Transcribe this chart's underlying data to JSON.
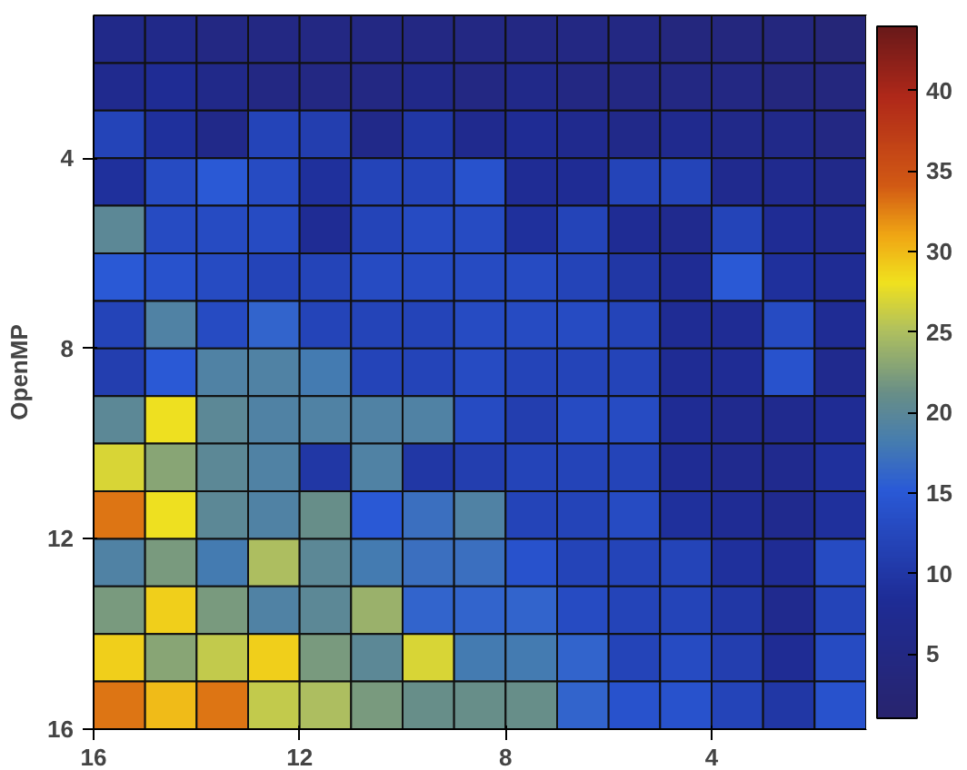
{
  "chart_data": {
    "type": "heatmap",
    "ylabel": "OpenMP",
    "x": [
      15.5,
      14.5,
      13.5,
      12.5,
      11.5,
      10.5,
      9.5,
      8.5,
      7.5,
      6.5,
      5.5,
      4.5,
      3.5,
      2.5,
      1.5
    ],
    "y": [
      1.5,
      2.5,
      3.5,
      4.5,
      5.5,
      6.5,
      7.5,
      8.5,
      9.5,
      10.5,
      11.5,
      12.5,
      13.5,
      14.5,
      15.5
    ],
    "xlim": [
      16,
      1
    ],
    "xticks": [
      16,
      12,
      8,
      4
    ],
    "ylim": [
      16,
      1
    ],
    "yticks": [
      4,
      8,
      12,
      16
    ],
    "clim": [
      1,
      44
    ],
    "cticks": [
      5,
      10,
      15,
      20,
      25,
      30,
      35,
      40
    ],
    "cells": [
      [
        6,
        6,
        5,
        5,
        5,
        5,
        5,
        5,
        5,
        5,
        5,
        4,
        4,
        4,
        3
      ],
      [
        7,
        8,
        6,
        5,
        5,
        5,
        6,
        5,
        6,
        5,
        5,
        5,
        5,
        4,
        4
      ],
      [
        12,
        9,
        6,
        12,
        11,
        6,
        10,
        7,
        8,
        7,
        6,
        7,
        6,
        6,
        5
      ],
      [
        9,
        13,
        15,
        13,
        9,
        12,
        12,
        14,
        8,
        8,
        12,
        12,
        7,
        7,
        6
      ],
      [
        20,
        13,
        13,
        13,
        8,
        12,
        13,
        13,
        9,
        12,
        8,
        7,
        12,
        8,
        7
      ],
      [
        15,
        14,
        13,
        12,
        12,
        13,
        13,
        13,
        13,
        12,
        10,
        8,
        15,
        9,
        8
      ],
      [
        12,
        19,
        13,
        16,
        12,
        12,
        12,
        13,
        13,
        13,
        12,
        8,
        8,
        13,
        8
      ],
      [
        11,
        15,
        19,
        19,
        18,
        12,
        12,
        13,
        12,
        12,
        12,
        8,
        8,
        14,
        7
      ],
      [
        20,
        28,
        20,
        19,
        19,
        19,
        19,
        13,
        11,
        13,
        13,
        8,
        7,
        7,
        8
      ],
      [
        27,
        23,
        20,
        19,
        10,
        19,
        10,
        11,
        12,
        12,
        12,
        8,
        7,
        7,
        9
      ],
      [
        33,
        28,
        20,
        19,
        21,
        15,
        17,
        19,
        12,
        12,
        13,
        9,
        8,
        7,
        9
      ],
      [
        19,
        22,
        18,
        25,
        20,
        18,
        17,
        17,
        14,
        12,
        12,
        12,
        9,
        8,
        13
      ],
      [
        22,
        29,
        22,
        19,
        20,
        24,
        16,
        16,
        16,
        13,
        12,
        12,
        10,
        7,
        12
      ],
      [
        29,
        23,
        26,
        29,
        22,
        20,
        27,
        18,
        18,
        16,
        12,
        13,
        11,
        8,
        13
      ],
      [
        33,
        30,
        33,
        26,
        25,
        22,
        21,
        21,
        21,
        16,
        14,
        14,
        12,
        10,
        14
      ]
    ]
  }
}
